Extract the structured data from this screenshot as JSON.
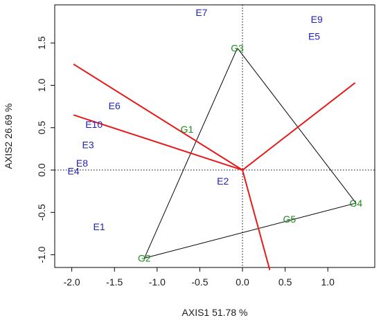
{
  "chart_data": {
    "type": "scatter",
    "subtype": "GGE biplot (which-won-where)",
    "xlabel": "AXIS1 51.78 %",
    "ylabel": "AXIS2 26.69 %",
    "xlim": [
      -2.2,
      1.55
    ],
    "ylim": [
      -1.15,
      1.95
    ],
    "x_ticks": [
      -2.0,
      -1.5,
      -1.0,
      -0.5,
      0.0,
      0.5,
      1.0
    ],
    "x_tick_labels": [
      "-2.0",
      "-1.5",
      "-1.0",
      "-0.5",
      "0.0",
      "0.5",
      "1.0"
    ],
    "y_ticks": [
      -1.0,
      -0.5,
      0.0,
      0.5,
      1.0,
      1.5
    ],
    "y_tick_labels": [
      "-1.0",
      "-0.5",
      "0.0",
      "0.5",
      "1.0",
      "1.5"
    ],
    "grid": false,
    "reference_lines": {
      "x": 0,
      "y": 0,
      "style": "dotted"
    },
    "colors": {
      "environment": "#1f1fc0",
      "genotype": "#1a8c1a",
      "ray": "#e61919",
      "polygon": "#000000"
    },
    "environments": [
      {
        "label": "E1",
        "x": -1.68,
        "y": -0.67
      },
      {
        "label": "E2",
        "x": -0.23,
        "y": -0.13
      },
      {
        "label": "E3",
        "x": -1.81,
        "y": 0.3
      },
      {
        "label": "E4",
        "x": -1.98,
        "y": -0.01
      },
      {
        "label": "E5",
        "x": 0.84,
        "y": 1.58
      },
      {
        "label": "E6",
        "x": -1.5,
        "y": 0.76
      },
      {
        "label": "E7",
        "x": -0.48,
        "y": 1.86
      },
      {
        "label": "E8",
        "x": -1.88,
        "y": 0.08
      },
      {
        "label": "E9",
        "x": 0.87,
        "y": 1.78
      },
      {
        "label": "E10",
        "x": -1.74,
        "y": 0.54
      }
    ],
    "genotypes": [
      {
        "label": "G1",
        "x": -0.65,
        "y": 0.48
      },
      {
        "label": "G2",
        "x": -1.15,
        "y": -1.04
      },
      {
        "label": "G3",
        "x": -0.06,
        "y": 1.44
      },
      {
        "label": "G4",
        "x": 1.33,
        "y": -0.39
      },
      {
        "label": "G5",
        "x": 0.55,
        "y": -0.58
      }
    ],
    "polygon_vertices": [
      "G3",
      "G4",
      "G2"
    ],
    "rays": [
      {
        "x": -1.98,
        "y": 1.25
      },
      {
        "x": -1.98,
        "y": 0.65
      },
      {
        "x": 1.32,
        "y": 1.03
      },
      {
        "x": 0.32,
        "y": -1.18
      }
    ]
  }
}
